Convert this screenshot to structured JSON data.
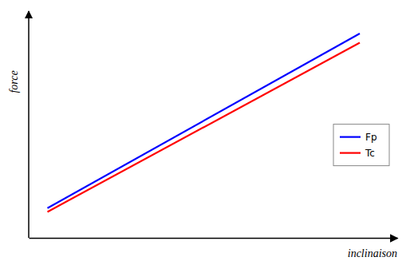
{
  "chart_data": {
    "type": "line",
    "xlabel": "inclinaison",
    "ylabel": "force",
    "x": [
      0.0,
      1.0
    ],
    "series": [
      {
        "name": "Fp",
        "color": "#0000ff",
        "values": [
          0.04,
          0.98
        ]
      },
      {
        "name": "Tc",
        "color": "#ff0000",
        "values": [
          0.02,
          0.93
        ]
      }
    ],
    "xlim": [
      -0.06,
      1.12
    ],
    "ylim": [
      -0.12,
      1.1
    ],
    "tick_labels": false,
    "legend": "right"
  }
}
